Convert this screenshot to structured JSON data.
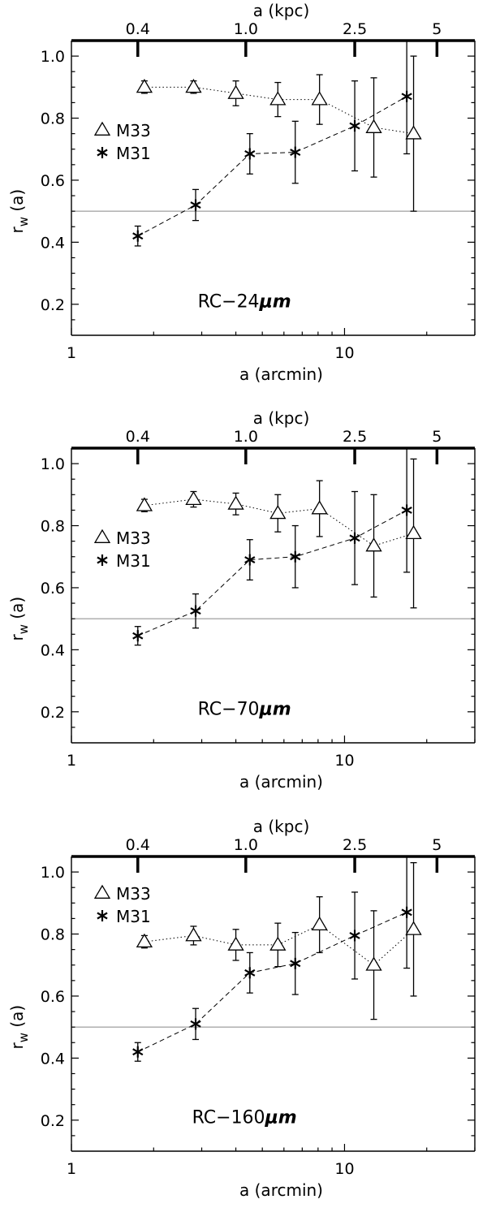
{
  "chart_data": [
    {
      "type": "scatter",
      "panel_label": "RC−24",
      "panel_unit": "μm",
      "xlabel": "a (arcmin)",
      "ylabel": "r",
      "ylabel_sub": "w",
      "ylabel_tail": " (a)",
      "x2label": "a (kpc)",
      "xscale": "log",
      "xlim": [
        1,
        30
      ],
      "ylim": [
        0.1,
        1.05
      ],
      "reference_line": 0.5,
      "xticks": [
        {
          "value": 1,
          "label": "1"
        },
        {
          "value": 10,
          "label": "10"
        }
      ],
      "yticks": [
        {
          "value": 0.2,
          "label": "0.2"
        },
        {
          "value": 0.4,
          "label": "0.4"
        },
        {
          "value": 0.6,
          "label": "0.6"
        },
        {
          "value": 0.8,
          "label": "0.8"
        },
        {
          "value": 1.0,
          "label": "1.0"
        }
      ],
      "x2ticks": [
        {
          "value": 1.75,
          "label": "0.4"
        },
        {
          "value": 4.35,
          "label": "1.0"
        },
        {
          "value": 10.9,
          "label": "2.5"
        },
        {
          "value": 21.8,
          "label": "5"
        }
      ],
      "legend_position": "left",
      "series": [
        {
          "name": "M33",
          "marker": "triangle",
          "line": "dotted",
          "x": [
            1.85,
            2.8,
            4.0,
            5.7,
            8.1,
            12.8,
            17.9
          ],
          "y": [
            0.9,
            0.9,
            0.88,
            0.86,
            0.86,
            0.77,
            0.75
          ],
          "yerr": [
            0.02,
            0.02,
            0.04,
            0.055,
            0.08,
            0.16,
            0.25
          ]
        },
        {
          "name": "M31",
          "marker": "asterisk",
          "line": "dashed",
          "x": [
            1.75,
            2.85,
            4.5,
            6.6,
            10.9,
            16.9
          ],
          "y": [
            0.42,
            0.52,
            0.685,
            0.69,
            0.775,
            0.87
          ],
          "yerr": [
            0.032,
            0.05,
            0.065,
            0.1,
            0.145,
            0.185
          ]
        }
      ]
    },
    {
      "type": "scatter",
      "panel_label": "RC−70",
      "panel_unit": "μm",
      "xlabel": "a (arcmin)",
      "ylabel": "r",
      "ylabel_sub": "w",
      "ylabel_tail": " (a)",
      "x2label": "a (kpc)",
      "xscale": "log",
      "xlim": [
        1,
        30
      ],
      "ylim": [
        0.1,
        1.05
      ],
      "reference_line": 0.5,
      "xticks": [
        {
          "value": 1,
          "label": "1"
        },
        {
          "value": 10,
          "label": "10"
        }
      ],
      "yticks": [
        {
          "value": 0.2,
          "label": "0.2"
        },
        {
          "value": 0.4,
          "label": "0.4"
        },
        {
          "value": 0.6,
          "label": "0.6"
        },
        {
          "value": 0.8,
          "label": "0.8"
        },
        {
          "value": 1.0,
          "label": "1.0"
        }
      ],
      "x2ticks": [
        {
          "value": 1.75,
          "label": "0.4"
        },
        {
          "value": 4.35,
          "label": "1.0"
        },
        {
          "value": 10.9,
          "label": "2.5"
        },
        {
          "value": 21.8,
          "label": "5"
        }
      ],
      "legend_position": "left",
      "series": [
        {
          "name": "M33",
          "marker": "triangle",
          "line": "dotted",
          "x": [
            1.85,
            2.8,
            4.0,
            5.7,
            8.1,
            12.8,
            17.9
          ],
          "y": [
            0.865,
            0.885,
            0.87,
            0.84,
            0.855,
            0.735,
            0.775
          ],
          "yerr": [
            0.02,
            0.025,
            0.035,
            0.06,
            0.09,
            0.165,
            0.24
          ]
        },
        {
          "name": "M31",
          "marker": "asterisk",
          "line": "dashed",
          "x": [
            1.75,
            2.85,
            4.5,
            6.6,
            10.9,
            16.9
          ],
          "y": [
            0.445,
            0.525,
            0.69,
            0.7,
            0.76,
            0.85
          ],
          "yerr": [
            0.03,
            0.055,
            0.065,
            0.1,
            0.15,
            0.2
          ]
        }
      ]
    },
    {
      "type": "scatter",
      "panel_label": "RC−160",
      "panel_unit": "μm",
      "xlabel": "a (arcmin)",
      "ylabel": "r",
      "ylabel_sub": "w",
      "ylabel_tail": " (a)",
      "x2label": "a (kpc)",
      "xscale": "log",
      "xlim": [
        1,
        30
      ],
      "ylim": [
        0.1,
        1.05
      ],
      "reference_line": 0.5,
      "xticks": [
        {
          "value": 1,
          "label": "1"
        },
        {
          "value": 10,
          "label": "10"
        }
      ],
      "yticks": [
        {
          "value": 0.2,
          "label": "0.2"
        },
        {
          "value": 0.4,
          "label": "0.4"
        },
        {
          "value": 0.6,
          "label": "0.6"
        },
        {
          "value": 0.8,
          "label": "0.8"
        },
        {
          "value": 1.0,
          "label": "1.0"
        }
      ],
      "x2ticks": [
        {
          "value": 1.75,
          "label": "0.4"
        },
        {
          "value": 4.35,
          "label": "1.0"
        },
        {
          "value": 10.9,
          "label": "2.5"
        },
        {
          "value": 21.8,
          "label": "5"
        }
      ],
      "legend_position": "top-left",
      "series": [
        {
          "name": "M33",
          "marker": "triangle",
          "line": "dotted",
          "x": [
            1.85,
            2.8,
            4.0,
            5.7,
            8.1,
            12.8,
            17.9
          ],
          "y": [
            0.775,
            0.795,
            0.765,
            0.765,
            0.83,
            0.7,
            0.815
          ],
          "yerr": [
            0.02,
            0.03,
            0.05,
            0.07,
            0.09,
            0.175,
            0.215
          ]
        },
        {
          "name": "M31",
          "marker": "asterisk",
          "line": "dashed",
          "x": [
            1.75,
            2.85,
            4.5,
            6.6,
            10.9,
            16.9
          ],
          "y": [
            0.42,
            0.51,
            0.675,
            0.705,
            0.795,
            0.87
          ],
          "yerr": [
            0.03,
            0.05,
            0.065,
            0.1,
            0.14,
            0.18
          ]
        }
      ]
    }
  ]
}
